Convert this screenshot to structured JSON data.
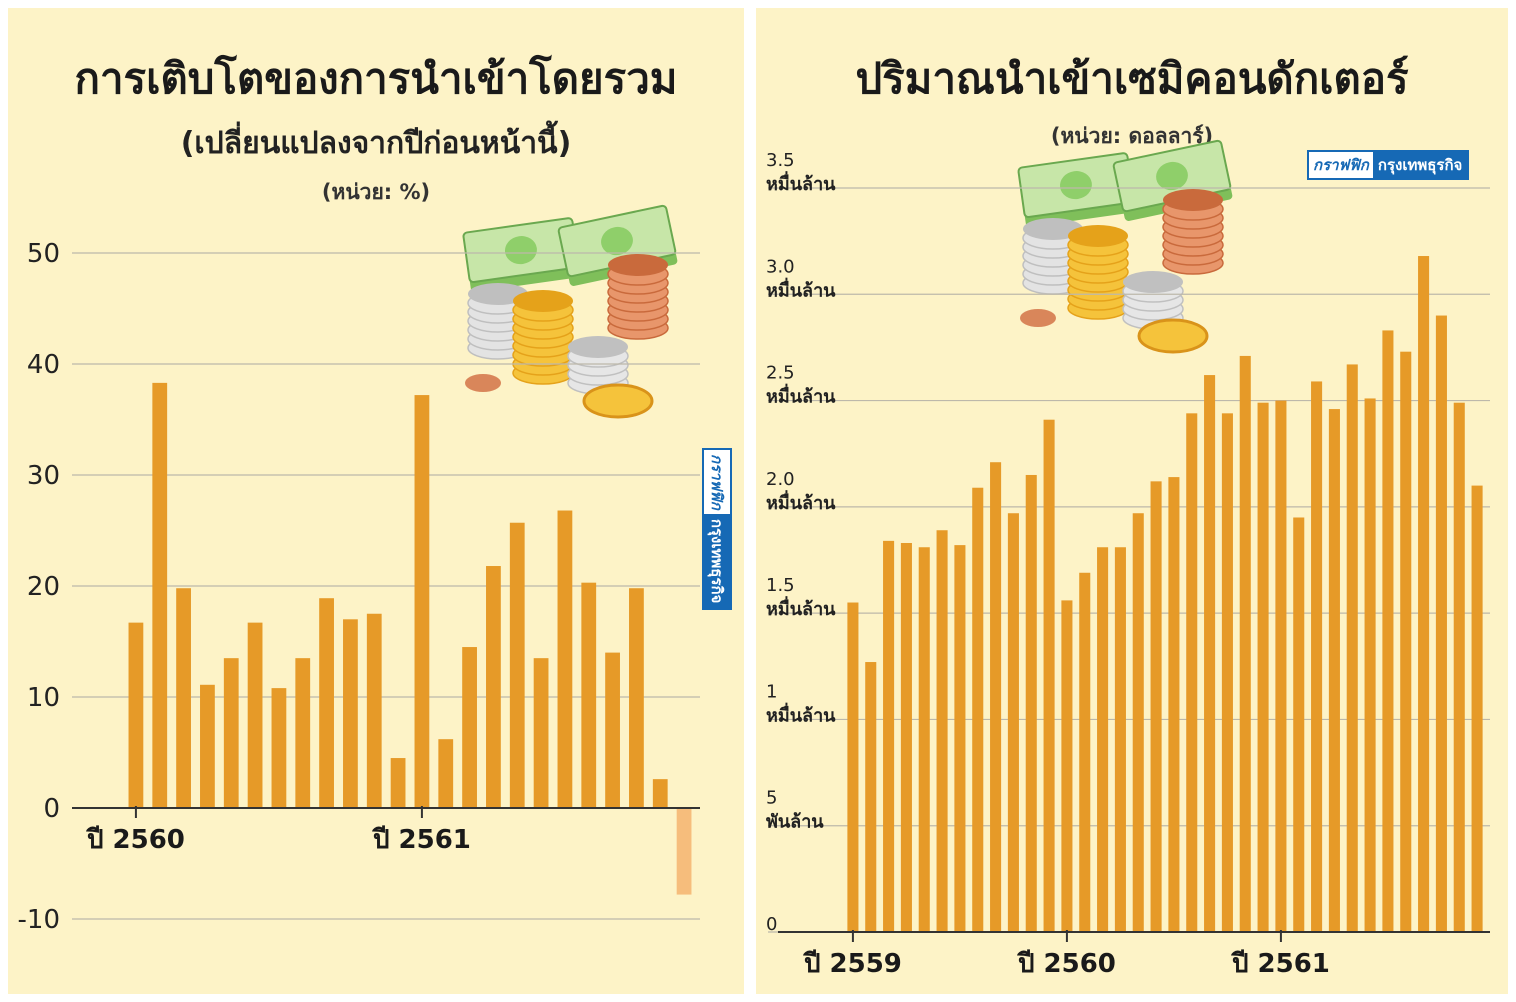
{
  "left": {
    "title": "การเติบโตของการนำเข้าโดยรวม",
    "subtitle": "(เปลี่ยนแปลงจากปีก่อนหน้านี้)",
    "unit": "(หน่วย: %)",
    "badge": {
      "a": "กราฟฟิก",
      "b": "กรุงเทพธุรกิจ"
    }
  },
  "right": {
    "title": "ปริมาณนำเข้าเซมิคอนดักเตอร์",
    "unit": "(หน่วย: ดอลลาร์)",
    "badge": {
      "a": "กราฟฟิก",
      "b": "กรุงเทพธุรกิจ"
    }
  },
  "colors": {
    "bar": "#e69a28",
    "bar_negative": "#f6bd7c",
    "grid": "#bdb8aa",
    "axis": "#333333",
    "panel": "#fdf3c7"
  },
  "icons": [
    "money-stack-icon",
    "coins-stack-icon"
  ],
  "chart_data": [
    {
      "type": "bar",
      "unit": "%",
      "ylim": [
        -10,
        50
      ],
      "yticks": [
        "-10",
        "0",
        "10",
        "20",
        "30",
        "40",
        "50"
      ],
      "ytick_values": [
        -10,
        0,
        10,
        20,
        30,
        40,
        50
      ],
      "x_tick_labels": [
        "ปี 2560",
        "ปี 2561"
      ],
      "x_tick_at_index": [
        0,
        12
      ],
      "grid": true,
      "values": [
        16.7,
        38.3,
        19.8,
        11.1,
        13.5,
        16.7,
        10.8,
        13.5,
        18.9,
        17.0,
        17.5,
        4.5,
        37.2,
        6.2,
        14.5,
        21.8,
        25.7,
        13.5,
        26.8,
        20.3,
        14.0,
        19.8,
        2.6,
        -7.8
      ]
    },
    {
      "type": "bar",
      "unit": "USD",
      "ylim": [
        0,
        35000
      ],
      "yticks": [
        {
          "value": 0,
          "num": "0",
          "word": ""
        },
        {
          "value": 5000,
          "num": "5",
          "word": "พันล้าน"
        },
        {
          "value": 10000,
          "num": "1",
          "word": "หมื่นล้าน"
        },
        {
          "value": 15000,
          "num": "1.5",
          "word": "หมื่นล้าน"
        },
        {
          "value": 20000,
          "num": "2.0",
          "word": "หมื่นล้าน"
        },
        {
          "value": 25000,
          "num": "2.5",
          "word": "หมื่นล้าน"
        },
        {
          "value": 30000,
          "num": "3.0",
          "word": "หมื่นล้าน"
        },
        {
          "value": 35000,
          "num": "3.5",
          "word": "หมื่นล้าน"
        }
      ],
      "x_tick_labels": [
        "ปี 2559",
        "ปี 2560",
        "ปี 2561"
      ],
      "x_tick_at_index": [
        0,
        12,
        24
      ],
      "grid": true,
      "values": [
        15500,
        12700,
        18400,
        18300,
        18100,
        18900,
        18200,
        20900,
        22100,
        19700,
        21500,
        24100,
        15600,
        16900,
        18100,
        18100,
        19700,
        21200,
        21400,
        24400,
        26200,
        24400,
        27100,
        24900,
        25000,
        19500,
        25900,
        24600,
        26700,
        25100,
        28300,
        27300,
        31800,
        29000,
        24900,
        21000
      ]
    }
  ]
}
